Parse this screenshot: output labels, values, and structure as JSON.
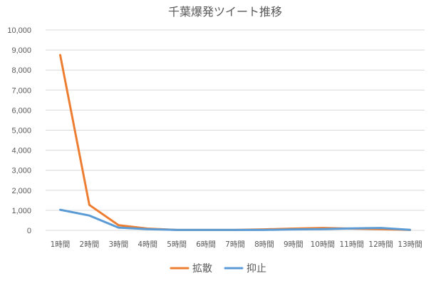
{
  "chart_data": {
    "type": "line",
    "title": "千葉爆発ツイート推移",
    "xlabel": "",
    "ylabel": "",
    "categories": [
      "1時間",
      "2時間",
      "3時間",
      "4時間",
      "5時間",
      "6時間",
      "7時間",
      "8時間",
      "9時間",
      "10時間",
      "11時間",
      "12時間",
      "13時間"
    ],
    "series": [
      {
        "name": "拡散",
        "color": "#ed7d31",
        "values": [
          8750,
          1270,
          260,
          90,
          20,
          20,
          20,
          50,
          90,
          120,
          90,
          60,
          20
        ]
      },
      {
        "name": "抑止",
        "color": "#5b9bd5",
        "values": [
          1030,
          740,
          140,
          60,
          20,
          20,
          20,
          20,
          50,
          60,
          100,
          120,
          30
        ]
      }
    ],
    "ylim": [
      0,
      10000
    ],
    "yticks": [
      0,
      1000,
      2000,
      3000,
      4000,
      5000,
      6000,
      7000,
      8000,
      9000,
      10000
    ],
    "ytick_labels": [
      "0",
      "1,000",
      "2,000",
      "3,000",
      "4,000",
      "5,000",
      "6,000",
      "7,000",
      "8,000",
      "9,000",
      "10,000"
    ],
    "grid": true,
    "legend_position": "bottom"
  }
}
